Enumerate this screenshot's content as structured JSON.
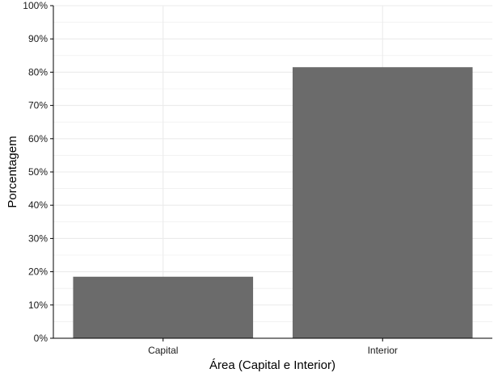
{
  "chart_data": {
    "type": "bar",
    "categories": [
      "Capital",
      "Interior"
    ],
    "values": [
      18.5,
      81.5
    ],
    "xlabel": "Área (Capital e Interior)",
    "ylabel": "Porcentagem",
    "ylim": [
      0,
      100
    ],
    "yticks": [
      0,
      10,
      20,
      30,
      40,
      50,
      60,
      70,
      80,
      90,
      100
    ],
    "ytick_labels": [
      "0%",
      "10%",
      "20%",
      "30%",
      "40%",
      "50%",
      "60%",
      "70%",
      "80%",
      "90%",
      "100%"
    ],
    "grid": true,
    "legend": "none",
    "colors": {
      "bar": "#6b6b6b",
      "grid": "#ebebeb",
      "axis": "#000000",
      "background": "#ffffff"
    }
  }
}
